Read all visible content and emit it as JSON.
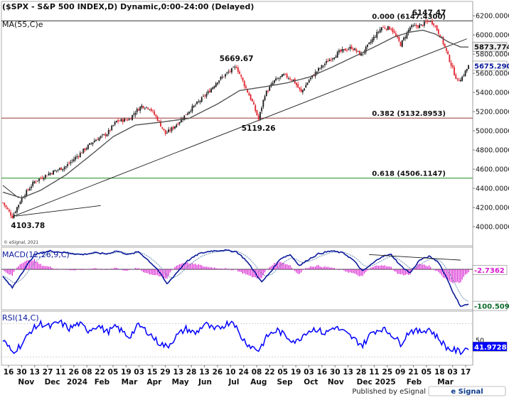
{
  "header": {
    "title": "($SPX - S&P 500 INDEX,D) Dynamic,0:00-24:00 (Delayed)",
    "ma_label": "MA(55,C)e"
  },
  "footer": {
    "published": "Published by eSignal",
    "brand": "e Signal",
    "copyright": "© eSignal, 2021"
  },
  "colors": {
    "up": "#1a1a1a",
    "down": "#e0202a",
    "ma": "#555555",
    "macd": "#0b1a9c",
    "signal": "#6b8fb0",
    "hist": "#d81bd0",
    "rsi": "#0000ff",
    "fib0": "#1a1a1a",
    "fib382": "#8b1a1a",
    "fib618": "#1e8a1e",
    "trend": "#1a1a1a"
  },
  "chart_data": [
    {
      "type": "candlestick",
      "title": "$SPX - S&P 500 INDEX, Daily",
      "x_labels": [
        "16",
        "30",
        "13",
        "27",
        "11",
        "26",
        "08",
        "22",
        "05",
        "19",
        "03",
        "15",
        "29",
        "13",
        "28",
        "13",
        "26",
        "10",
        "24",
        "08",
        "22",
        "05",
        "19",
        "03",
        "16",
        "30",
        "13",
        "28",
        "11",
        "25",
        "09",
        "21",
        "05",
        "18",
        "03",
        "17"
      ],
      "month_labels": [
        "Nov",
        "Dec",
        "2024",
        "Feb",
        "Mar",
        "Apr",
        "May",
        "Jun",
        "Jul",
        "Aug",
        "Sep",
        "Oct",
        "Nov",
        "Dec",
        "2025",
        "Feb",
        "Mar"
      ],
      "ylim": [
        3800,
        6350
      ],
      "yticks": [
        6200,
        6000,
        5800,
        5600,
        5400,
        5200,
        5000,
        4800,
        4600,
        4400,
        4200,
        4000
      ],
      "yticks_text": [
        "6200.0000",
        "6000.0000",
        "5800.0000",
        "5600.0000",
        "5400.0000",
        "5200.0000",
        "5000.0000",
        "4800.0000",
        "4600.0000",
        "4400.0000",
        "4200.0000",
        "4000.0000"
      ],
      "last_price": "5675.2900",
      "ma_value": "5873.7742",
      "annotations": [
        "6147.47",
        "5669.67",
        "5119.26",
        "4103.78"
      ],
      "fib_levels": [
        {
          "label": "0.000 (6147.4300)",
          "value": 6147.43
        },
        {
          "label": "0.382 (5132.8953)",
          "value": 5132.8953
        },
        {
          "label": "0.618 (4506.1147)",
          "value": 4506.1147
        }
      ],
      "price_path": [
        [
          0,
          4250
        ],
        [
          6,
          4103.78
        ],
        [
          12,
          4300
        ],
        [
          20,
          4470
        ],
        [
          30,
          4560
        ],
        [
          40,
          4630
        ],
        [
          50,
          4780
        ],
        [
          58,
          4900
        ],
        [
          66,
          4970
        ],
        [
          72,
          5100
        ],
        [
          80,
          5120
        ],
        [
          84,
          5200
        ],
        [
          88,
          5260
        ],
        [
          93,
          5240
        ],
        [
          98,
          5120
        ],
        [
          103,
          4970
        ],
        [
          107,
          5020
        ],
        [
          112,
          5100
        ],
        [
          118,
          5210
        ],
        [
          124,
          5300
        ],
        [
          130,
          5400
        ],
        [
          136,
          5520
        ],
        [
          142,
          5600
        ],
        [
          148,
          5669.67
        ],
        [
          153,
          5480
        ],
        [
          158,
          5300
        ],
        [
          162,
          5119.26
        ],
        [
          166,
          5380
        ],
        [
          172,
          5520
        ],
        [
          178,
          5580
        ],
        [
          184,
          5530
        ],
        [
          189,
          5400
        ],
        [
          194,
          5530
        ],
        [
          200,
          5640
        ],
        [
          206,
          5730
        ],
        [
          213,
          5820
        ],
        [
          221,
          5870
        ],
        [
          227,
          5790
        ],
        [
          234,
          5950
        ],
        [
          240,
          6080
        ],
        [
          246,
          6070
        ],
        [
          252,
          5900
        ],
        [
          258,
          6080
        ],
        [
          265,
          6100
        ],
        [
          270,
          6147.47
        ],
        [
          273,
          6120
        ],
        [
          278,
          5960
        ],
        [
          282,
          5780
        ],
        [
          286,
          5600
        ],
        [
          288,
          5520
        ],
        [
          291,
          5560
        ],
        [
          295,
          5675.29
        ]
      ],
      "ma_path": [
        [
          0,
          4360
        ],
        [
          12,
          4300
        ],
        [
          24,
          4380
        ],
        [
          40,
          4540
        ],
        [
          56,
          4750
        ],
        [
          70,
          4940
        ],
        [
          84,
          5060
        ],
        [
          100,
          5090
        ],
        [
          118,
          5130
        ],
        [
          136,
          5280
        ],
        [
          150,
          5420
        ],
        [
          166,
          5460
        ],
        [
          180,
          5500
        ],
        [
          194,
          5560
        ],
        [
          208,
          5660
        ],
        [
          222,
          5770
        ],
        [
          236,
          5880
        ],
        [
          248,
          5980
        ],
        [
          258,
          6030
        ],
        [
          266,
          6050
        ],
        [
          274,
          6010
        ],
        [
          282,
          5930
        ],
        [
          290,
          5873.77
        ]
      ],
      "trendlines": [
        {
          "from": [
            6,
            4103.78
          ],
          "to": [
            294,
            5960
          ]
        },
        {
          "from": [
            0,
            4430
          ],
          "to": [
            10,
            4300
          ]
        },
        {
          "from": [
            8,
            4110
          ],
          "to": [
            62,
            4220
          ]
        }
      ]
    },
    {
      "type": "line",
      "title": "MACD(12,26,9,C)",
      "ylim": [
        -110,
        60
      ],
      "reference_value": "-2.7362",
      "last_value": "-100.5099",
      "series": [
        "MACD",
        "Signal",
        "Histogram"
      ],
      "macd_path": [
        [
          0,
          -20
        ],
        [
          6,
          -50
        ],
        [
          12,
          -10
        ],
        [
          20,
          40
        ],
        [
          30,
          50
        ],
        [
          40,
          45
        ],
        [
          50,
          40
        ],
        [
          58,
          45
        ],
        [
          66,
          42
        ],
        [
          72,
          50
        ],
        [
          80,
          40
        ],
        [
          86,
          48
        ],
        [
          92,
          25
        ],
        [
          98,
          0
        ],
        [
          104,
          -40
        ],
        [
          110,
          -10
        ],
        [
          116,
          20
        ],
        [
          124,
          42
        ],
        [
          132,
          50
        ],
        [
          140,
          52
        ],
        [
          148,
          48
        ],
        [
          154,
          25
        ],
        [
          160,
          -10
        ],
        [
          164,
          -35
        ],
        [
          170,
          -5
        ],
        [
          176,
          30
        ],
        [
          182,
          40
        ],
        [
          188,
          10
        ],
        [
          194,
          28
        ],
        [
          200,
          42
        ],
        [
          208,
          50
        ],
        [
          216,
          44
        ],
        [
          222,
          25
        ],
        [
          228,
          -5
        ],
        [
          234,
          15
        ],
        [
          240,
          35
        ],
        [
          246,
          40
        ],
        [
          252,
          10
        ],
        [
          258,
          -10
        ],
        [
          264,
          25
        ],
        [
          270,
          35
        ],
        [
          276,
          20
        ],
        [
          282,
          -30
        ],
        [
          286,
          -70
        ],
        [
          290,
          -100
        ],
        [
          295,
          -95
        ]
      ],
      "trendline": {
        "from": [
          232,
          40
        ],
        "to": [
          290,
          25
        ]
      }
    },
    {
      "type": "line",
      "title": "RSI(14,C)",
      "ylim": [
        20,
        85
      ],
      "yticks": [
        50
      ],
      "reference_lines": [
        30,
        70
      ],
      "last_value": "41.9728",
      "rsi_path": [
        [
          0,
          50
        ],
        [
          6,
          36
        ],
        [
          12,
          45
        ],
        [
          18,
          62
        ],
        [
          24,
          70
        ],
        [
          30,
          66
        ],
        [
          36,
          72
        ],
        [
          42,
          64
        ],
        [
          48,
          70
        ],
        [
          54,
          62
        ],
        [
          60,
          68
        ],
        [
          66,
          60
        ],
        [
          72,
          66
        ],
        [
          80,
          54
        ],
        [
          86,
          68
        ],
        [
          92,
          60
        ],
        [
          98,
          48
        ],
        [
          104,
          42
        ],
        [
          110,
          55
        ],
        [
          116,
          64
        ],
        [
          122,
          58
        ],
        [
          128,
          70
        ],
        [
          134,
          62
        ],
        [
          140,
          68
        ],
        [
          146,
          74
        ],
        [
          150,
          56
        ],
        [
          156,
          44
        ],
        [
          162,
          38
        ],
        [
          168,
          56
        ],
        [
          174,
          62
        ],
        [
          180,
          54
        ],
        [
          186,
          48
        ],
        [
          192,
          60
        ],
        [
          198,
          64
        ],
        [
          204,
          58
        ],
        [
          210,
          66
        ],
        [
          216,
          60
        ],
        [
          222,
          52
        ],
        [
          228,
          44
        ],
        [
          234,
          60
        ],
        [
          240,
          64
        ],
        [
          246,
          58
        ],
        [
          252,
          46
        ],
        [
          258,
          62
        ],
        [
          264,
          60
        ],
        [
          270,
          64
        ],
        [
          276,
          52
        ],
        [
          282,
          40
        ],
        [
          286,
          38
        ],
        [
          290,
          36
        ],
        [
          295,
          42
        ]
      ]
    }
  ]
}
